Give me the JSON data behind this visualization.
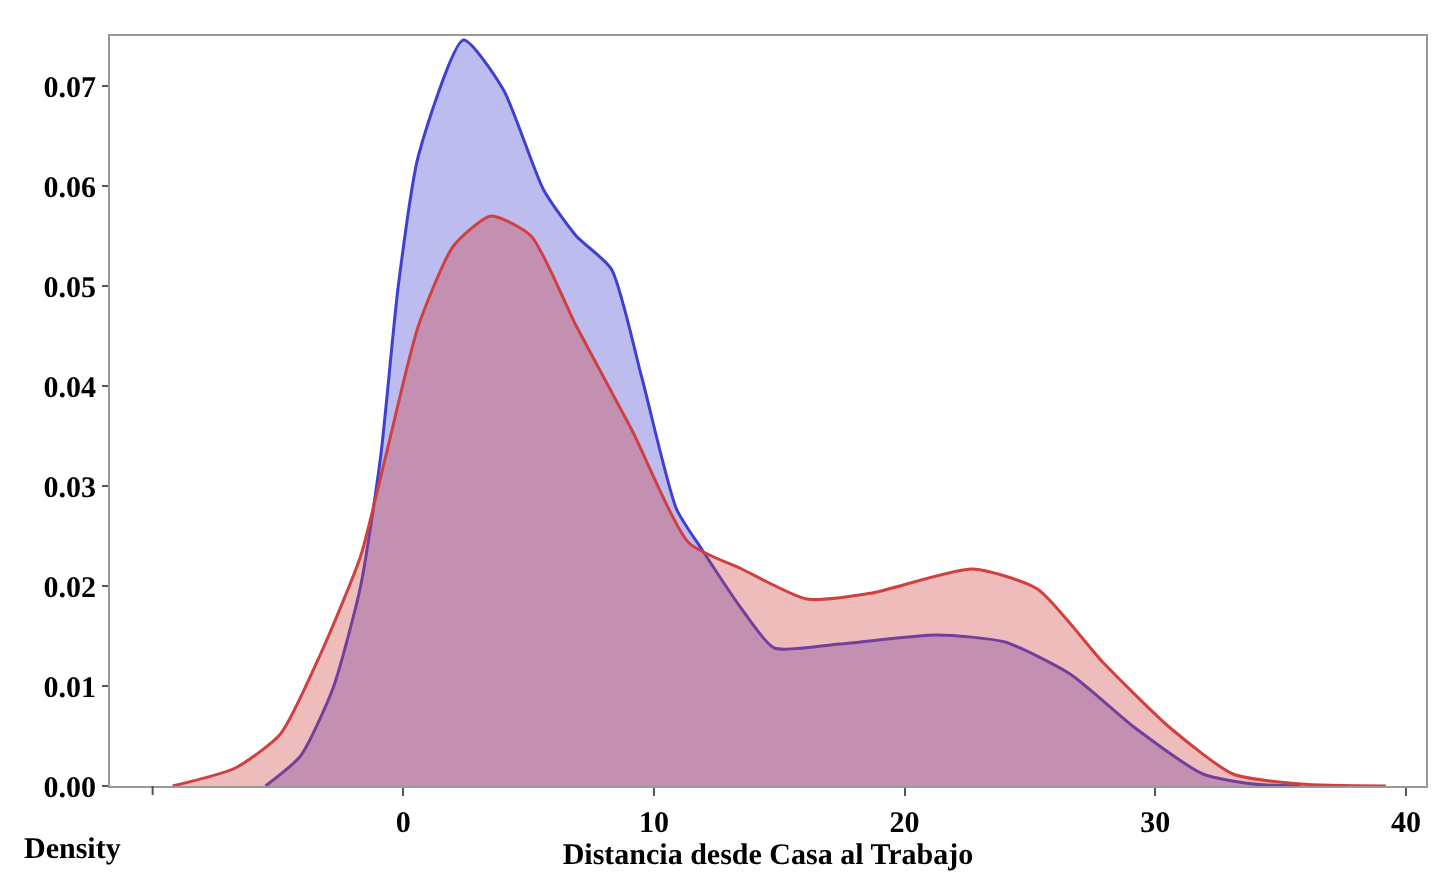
{
  "chart_data": {
    "type": "area",
    "xlabel": "Distancia desde Casa al Trabajo",
    "ylabel": "Density",
    "xlim": [
      -11.7,
      40.8
    ],
    "xticks": [
      {
        "value": -10,
        "label": null
      },
      0,
      10,
      20,
      30,
      40
    ],
    "ylim": [
      0,
      0.075
    ],
    "yticks": [
      "0.00",
      0.01,
      0.02,
      0.03,
      0.04,
      0.05,
      0.06,
      0.07
    ],
    "grid": false,
    "legend": false,
    "series": [
      {
        "color": "#4040d0",
        "x": [
          -5.5,
          -4.1,
          -2.8,
          -1.7,
          -0.9,
          -0.2,
          0.6,
          2.4,
          4.0,
          5.6,
          6.9,
          8.3,
          9.5,
          10.9,
          11.9,
          13.5,
          14.8,
          17.4,
          21.3,
          24.0,
          26.6,
          29.2,
          31.9,
          33.9,
          35.8
        ],
        "values": [
          0,
          0.003,
          0.0098,
          0.02,
          0.033,
          0.05,
          0.063,
          0.0746,
          0.0696,
          0.0596,
          0.055,
          0.0517,
          0.041,
          0.0277,
          0.0237,
          0.0177,
          0.0138,
          0.0142,
          0.0151,
          0.0144,
          0.0112,
          0.0058,
          0.0012,
          0.0002,
          0
        ]
      },
      {
        "color": "#d04040",
        "x": [
          -9.2,
          -6.7,
          -4.9,
          -3.3,
          -1.7,
          -0.7,
          0.6,
          2.0,
          3.5,
          5.1,
          6.9,
          9.1,
          11.4,
          13.5,
          16.1,
          18.7,
          22.7,
          25.3,
          27.9,
          30.6,
          33.1,
          35.8,
          39.2
        ],
        "values": [
          0,
          0.0018,
          0.0052,
          0.0132,
          0.023,
          0.033,
          0.046,
          0.054,
          0.057,
          0.055,
          0.046,
          0.0357,
          0.0243,
          0.0217,
          0.0187,
          0.0193,
          0.0217,
          0.0197,
          0.0124,
          0.0058,
          0.0012,
          0.0002,
          0
        ]
      }
    ]
  }
}
